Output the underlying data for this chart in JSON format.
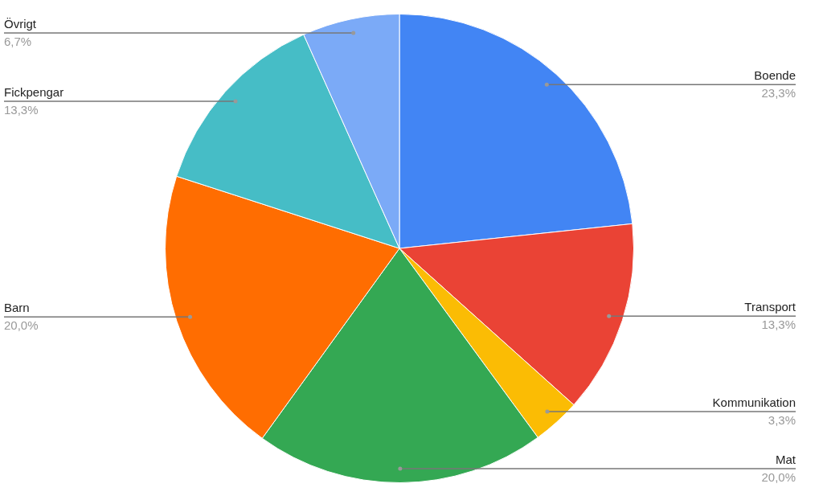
{
  "chart_data": {
    "type": "pie",
    "categories": [
      "Boende",
      "Transport",
      "Kommunikation",
      "Mat",
      "Barn",
      "Fickpengar",
      "Övrigt"
    ],
    "values": [
      23.3,
      13.3,
      3.3,
      20.0,
      20.0,
      13.3,
      6.7
    ],
    "colors": [
      "#4285f4",
      "#ea4335",
      "#fbbc04",
      "#34a853",
      "#ff6d01",
      "#46bdc6",
      "#7baaf7"
    ],
    "value_labels": [
      "23,3%",
      "13,3%",
      "3,3%",
      "20,0%",
      "20,0%",
      "13,3%",
      "6,7%"
    ],
    "legend": false
  }
}
